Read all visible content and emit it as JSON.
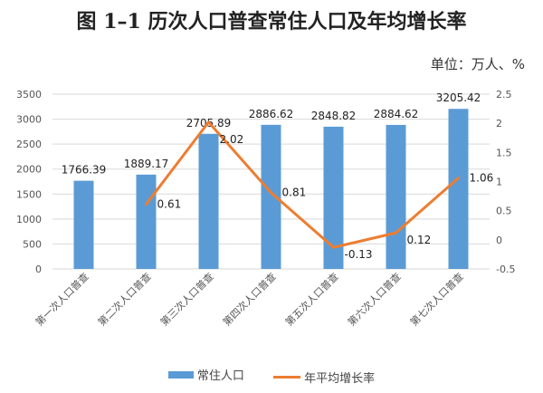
{
  "chart_data": {
    "type": "bar+line",
    "title": "图 1–1 历次人口普查常住人口及年均增长率",
    "unit_label": "单位：万人、%",
    "categories": [
      "第一次人口普查",
      "第二次人口普查",
      "第三次人口普查",
      "第四次人口普查",
      "第五次人口普查",
      "第六次人口普查",
      "第七次人口普查"
    ],
    "series": [
      {
        "name": "常住人口",
        "type": "bar",
        "axis": "left",
        "color": "#5B9BD5",
        "values": [
          1766.39,
          1889.17,
          2705.89,
          2886.62,
          2848.82,
          2884.62,
          3205.42
        ],
        "labels": [
          "1766.39",
          "1889.17",
          "2705.89",
          "2886.62",
          "2848.82",
          "2884.62",
          "3205.42"
        ]
      },
      {
        "name": "年平均增长率",
        "type": "line",
        "axis": "right",
        "color": "#ED7D31",
        "values": [
          null,
          0.61,
          2.02,
          0.81,
          -0.13,
          0.12,
          1.06
        ],
        "labels": [
          "",
          "0.61",
          "2.02",
          "0.81",
          "-0.13",
          "0.12",
          "1.06"
        ]
      }
    ],
    "left_axis": {
      "min": 0,
      "max": 3500,
      "step": 500,
      "ticks": [
        "0",
        "500",
        "1000",
        "1500",
        "2000",
        "2500",
        "3000",
        "3500"
      ]
    },
    "right_axis": {
      "min": -0.5,
      "max": 2.5,
      "step": 0.5,
      "ticks": [
        "-0.5",
        "0",
        "0.5",
        "1",
        "1.5",
        "2",
        "2.5"
      ]
    },
    "grid": true,
    "legend": "bottom"
  }
}
